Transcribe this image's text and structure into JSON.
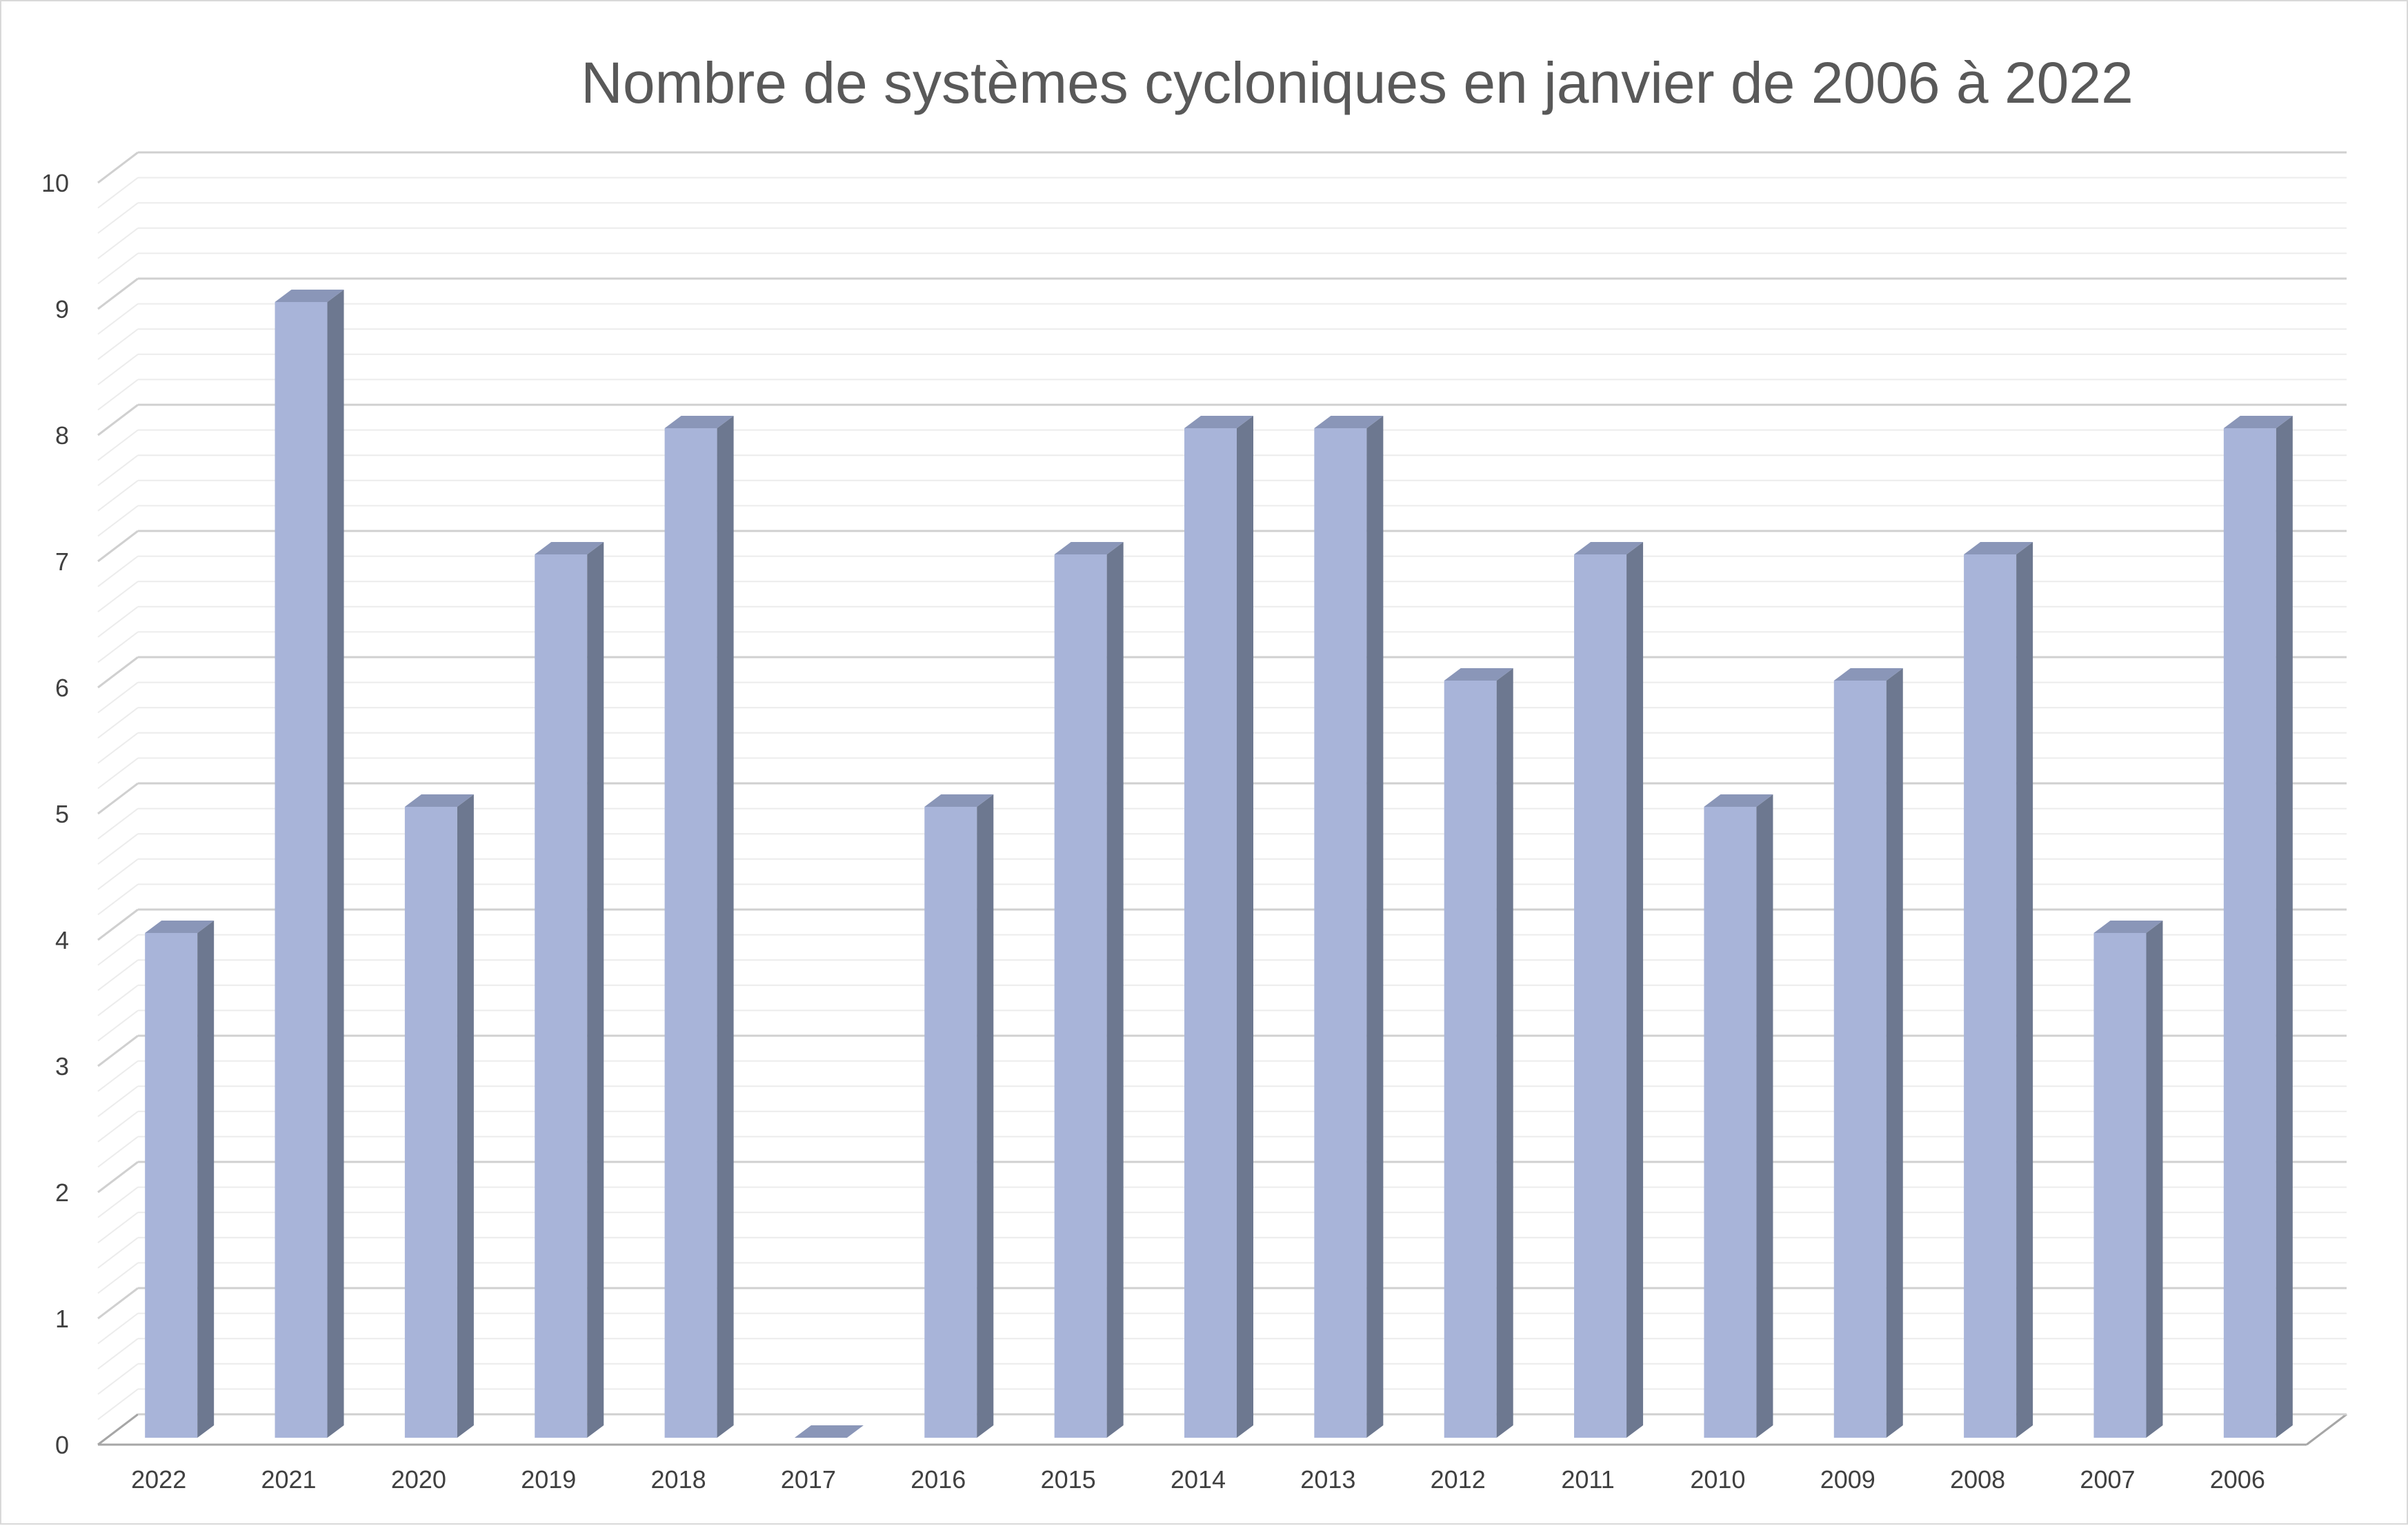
{
  "chart_data": {
    "type": "bar",
    "title": "Nombre de systèmes cycloniques en janvier de 2006 à 2022",
    "xlabel": "",
    "ylabel": "",
    "categories": [
      "2022",
      "2021",
      "2020",
      "2019",
      "2018",
      "2017",
      "2016",
      "2015",
      "2014",
      "2013",
      "2012",
      "2011",
      "2010",
      "2009",
      "2008",
      "2007",
      "2006"
    ],
    "series": [
      {
        "values": [
          4,
          9,
          5,
          7,
          8,
          0,
          5,
          7,
          8,
          8,
          6,
          7,
          5,
          6,
          7,
          4,
          8
        ]
      }
    ],
    "ylim": [
      0,
      10
    ],
    "yticks": [
      "0",
      "1",
      "2",
      "3",
      "4",
      "5",
      "6",
      "7",
      "8",
      "9",
      "10"
    ],
    "style": "3d-column",
    "grid": true,
    "legend": "none",
    "colors": {
      "bar_front": "#a8b4d9",
      "bar_side": "#6d7890",
      "bar_top": "#8a96b8",
      "gridline_major": "#d0d0d0",
      "gridline_minor": "#ececec",
      "axis": "#a6a6a6"
    }
  }
}
